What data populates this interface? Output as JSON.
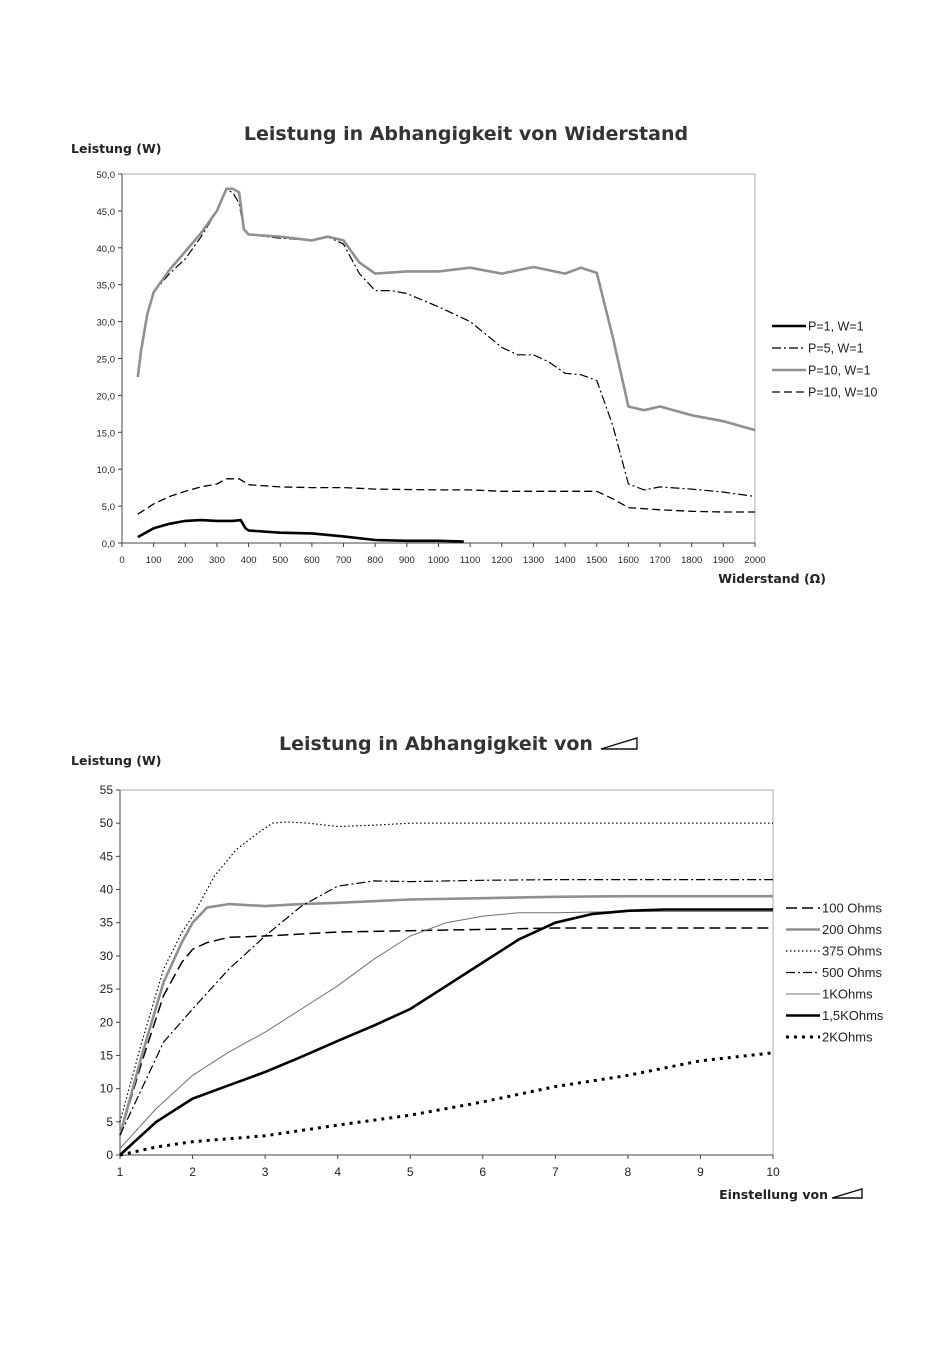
{
  "chart_data": [
    {
      "type": "line",
      "title": "Leistung in Abhangigkeit von Widerstand",
      "ylabel": "Leistung (W)",
      "xlabel": "Widerstand (Ω)",
      "xlim": [
        0,
        2000
      ],
      "ylim": [
        0,
        50
      ],
      "xticks": [
        "0",
        "100",
        "200",
        "300",
        "400",
        "500",
        "600",
        "700",
        "800",
        "900",
        "1000",
        "1100",
        "1200",
        "1300",
        "1400",
        "1500",
        "1600",
        "1700",
        "1800",
        "1900",
        "2000"
      ],
      "yticks": [
        "0,0",
        "5,0",
        "10,0",
        "15,0",
        "20,0",
        "25,0",
        "30,0",
        "35,0",
        "40,0",
        "45,0",
        "50,0"
      ],
      "grid": false,
      "legend_position": "right",
      "series": [
        {
          "name": "P=1, W=1",
          "style": "solid-thick",
          "color": "#000000",
          "points": [
            [
              50,
              0.8
            ],
            [
              100,
              2.0
            ],
            [
              150,
              2.6
            ],
            [
              200,
              3.0
            ],
            [
              250,
              3.1
            ],
            [
              300,
              3.0
            ],
            [
              350,
              3.0
            ],
            [
              375,
              3.1
            ],
            [
              390,
              2.0
            ],
            [
              400,
              1.7
            ],
            [
              500,
              1.4
            ],
            [
              600,
              1.3
            ],
            [
              700,
              0.9
            ],
            [
              800,
              0.4
            ],
            [
              900,
              0.3
            ],
            [
              1000,
              0.3
            ],
            [
              1080,
              0.2
            ]
          ]
        },
        {
          "name": "P=5, W=1",
          "style": "dashdot",
          "color": "#000000",
          "points": [
            [
              50,
              22.5
            ],
            [
              60,
              26
            ],
            [
              80,
              31
            ],
            [
              100,
              34
            ],
            [
              150,
              36.5
            ],
            [
              200,
              38.5
            ],
            [
              250,
              41.5
            ],
            [
              300,
              45
            ],
            [
              330,
              47.8
            ],
            [
              350,
              47.5
            ],
            [
              370,
              46
            ],
            [
              385,
              42.5
            ],
            [
              400,
              41.8
            ],
            [
              500,
              41.3
            ],
            [
              600,
              41.0
            ],
            [
              650,
              41.5
            ],
            [
              700,
              40.5
            ],
            [
              750,
              36.5
            ],
            [
              800,
              34.2
            ],
            [
              850,
              34.2
            ],
            [
              900,
              33.8
            ],
            [
              1000,
              32.0
            ],
            [
              1100,
              30.0
            ],
            [
              1200,
              26.5
            ],
            [
              1250,
              25.5
            ],
            [
              1300,
              25.5
            ],
            [
              1350,
              24.5
            ],
            [
              1400,
              23.0
            ],
            [
              1450,
              22.8
            ],
            [
              1500,
              22.0
            ],
            [
              1550,
              16.0
            ],
            [
              1600,
              8.0
            ],
            [
              1650,
              7.2
            ],
            [
              1700,
              7.6
            ],
            [
              1800,
              7.3
            ],
            [
              1900,
              6.9
            ],
            [
              2000,
              6.3
            ]
          ]
        },
        {
          "name": "P=10, W=1",
          "style": "solid-gray",
          "color": "#909090",
          "points": [
            [
              50,
              22.5
            ],
            [
              60,
              26
            ],
            [
              80,
              31
            ],
            [
              100,
              34
            ],
            [
              150,
              37
            ],
            [
              200,
              39.5
            ],
            [
              250,
              42
            ],
            [
              300,
              45
            ],
            [
              330,
              48.0
            ],
            [
              350,
              48.0
            ],
            [
              370,
              47.5
            ],
            [
              385,
              42.5
            ],
            [
              400,
              41.8
            ],
            [
              500,
              41.5
            ],
            [
              600,
              41.0
            ],
            [
              650,
              41.5
            ],
            [
              700,
              41.0
            ],
            [
              750,
              38.0
            ],
            [
              800,
              36.5
            ],
            [
              900,
              36.8
            ],
            [
              1000,
              36.8
            ],
            [
              1100,
              37.3
            ],
            [
              1200,
              36.5
            ],
            [
              1300,
              37.4
            ],
            [
              1400,
              36.5
            ],
            [
              1450,
              37.3
            ],
            [
              1500,
              36.6
            ],
            [
              1550,
              28.0
            ],
            [
              1600,
              18.5
            ],
            [
              1650,
              18.0
            ],
            [
              1700,
              18.5
            ],
            [
              1800,
              17.3
            ],
            [
              1900,
              16.5
            ],
            [
              2000,
              15.3
            ]
          ]
        },
        {
          "name": "P=10, W=10",
          "style": "dashed",
          "color": "#000000",
          "points": [
            [
              50,
              3.9
            ],
            [
              100,
              5.3
            ],
            [
              150,
              6.3
            ],
            [
              200,
              7.0
            ],
            [
              250,
              7.6
            ],
            [
              300,
              8.0
            ],
            [
              330,
              8.7
            ],
            [
              370,
              8.7
            ],
            [
              400,
              7.9
            ],
            [
              500,
              7.6
            ],
            [
              600,
              7.5
            ],
            [
              700,
              7.5
            ],
            [
              800,
              7.3
            ],
            [
              1000,
              7.2
            ],
            [
              1100,
              7.2
            ],
            [
              1200,
              7.0
            ],
            [
              1300,
              7.0
            ],
            [
              1400,
              7.0
            ],
            [
              1500,
              7.0
            ],
            [
              1550,
              6.0
            ],
            [
              1600,
              4.8
            ],
            [
              1700,
              4.5
            ],
            [
              1800,
              4.3
            ],
            [
              1900,
              4.2
            ],
            [
              2000,
              4.2
            ]
          ]
        }
      ]
    },
    {
      "type": "line",
      "title": "Leistung in Abhangigkeit von",
      "title_icon": "wedge-icon",
      "ylabel": "Leistung (W)",
      "xlabel": "Einstellung von",
      "xlabel_icon": "wedge-icon",
      "xlim": [
        1,
        10
      ],
      "ylim": [
        0,
        55
      ],
      "xticks": [
        "1",
        "2",
        "3",
        "4",
        "5",
        "6",
        "7",
        "8",
        "9",
        "10"
      ],
      "yticks": [
        "0",
        "5",
        "10",
        "15",
        "20",
        "25",
        "30",
        "35",
        "40",
        "45",
        "50",
        "55"
      ],
      "grid": false,
      "legend_position": "right",
      "series": [
        {
          "name": "100 Ohms",
          "style": "longdash",
          "color": "#000000",
          "points": [
            [
              1,
              3
            ],
            [
              1.3,
              14
            ],
            [
              1.6,
              24
            ],
            [
              1.85,
              29
            ],
            [
              2.0,
              31
            ],
            [
              2.2,
              32
            ],
            [
              2.5,
              32.8
            ],
            [
              3,
              33.0
            ],
            [
              3.5,
              33.3
            ],
            [
              4,
              33.6
            ],
            [
              5,
              33.8
            ],
            [
              6,
              34.0
            ],
            [
              7,
              34.2
            ],
            [
              8,
              34.2
            ],
            [
              9,
              34.2
            ],
            [
              10,
              34.2
            ]
          ]
        },
        {
          "name": "200 Ohms",
          "style": "solid-gray",
          "color": "#909090",
          "points": [
            [
              1,
              3
            ],
            [
              1.3,
              15
            ],
            [
              1.6,
              26
            ],
            [
              1.85,
              32
            ],
            [
              2.0,
              35
            ],
            [
              2.2,
              37.3
            ],
            [
              2.5,
              37.8
            ],
            [
              3,
              37.5
            ],
            [
              3.5,
              37.8
            ],
            [
              4,
              38.0
            ],
            [
              5,
              38.5
            ],
            [
              6,
              38.7
            ],
            [
              7,
              38.9
            ],
            [
              8,
              39.0
            ],
            [
              9,
              39.0
            ],
            [
              10,
              39.0
            ]
          ]
        },
        {
          "name": "375 Ohms",
          "style": "dotted",
          "color": "#000000",
          "points": [
            [
              1,
              5
            ],
            [
              1.3,
              17
            ],
            [
              1.6,
              28
            ],
            [
              1.85,
              33.5
            ],
            [
              2.0,
              36
            ],
            [
              2.3,
              42
            ],
            [
              2.6,
              46
            ],
            [
              2.9,
              48.5
            ],
            [
              3.1,
              50
            ],
            [
              3.3,
              50.2
            ],
            [
              3.6,
              50.0
            ],
            [
              4.0,
              49.5
            ],
            [
              4.5,
              49.7
            ],
            [
              5,
              50.0
            ],
            [
              6,
              50.0
            ],
            [
              7,
              50.0
            ],
            [
              8,
              50.0
            ],
            [
              9,
              50.0
            ],
            [
              10,
              50.0
            ]
          ]
        },
        {
          "name": "500 Ohms",
          "style": "dashdot",
          "color": "#000000",
          "points": [
            [
              1,
              3
            ],
            [
              1.3,
              10
            ],
            [
              1.6,
              17
            ],
            [
              2.0,
              22
            ],
            [
              2.5,
              28
            ],
            [
              3.0,
              33
            ],
            [
              3.5,
              37.5
            ],
            [
              4.0,
              40.5
            ],
            [
              4.5,
              41.3
            ],
            [
              5,
              41.2
            ],
            [
              6,
              41.4
            ],
            [
              7,
              41.5
            ],
            [
              8,
              41.5
            ],
            [
              9,
              41.5
            ],
            [
              10,
              41.5
            ]
          ]
        },
        {
          "name": "1KOhms",
          "style": "solid-thin",
          "color": "#707070",
          "points": [
            [
              1,
              1
            ],
            [
              1.5,
              7
            ],
            [
              2.0,
              12
            ],
            [
              2.5,
              15.5
            ],
            [
              3.0,
              18.5
            ],
            [
              3.5,
              22
            ],
            [
              4.0,
              25.5
            ],
            [
              4.5,
              29.5
            ],
            [
              5.0,
              33
            ],
            [
              5.5,
              35
            ],
            [
              6.0,
              36
            ],
            [
              6.5,
              36.5
            ],
            [
              7,
              36.5
            ],
            [
              8,
              36.7
            ],
            [
              9,
              36.7
            ],
            [
              10,
              36.7
            ]
          ]
        },
        {
          "name": "1,5KOhms",
          "style": "solid-thick",
          "color": "#000000",
          "points": [
            [
              1,
              0
            ],
            [
              1.5,
              5
            ],
            [
              2.0,
              8.5
            ],
            [
              2.5,
              10.5
            ],
            [
              3.0,
              12.5
            ],
            [
              3.5,
              14.8
            ],
            [
              4.0,
              17.2
            ],
            [
              4.5,
              19.5
            ],
            [
              5.0,
              22
            ],
            [
              5.5,
              25.5
            ],
            [
              6.0,
              29
            ],
            [
              6.5,
              32.5
            ],
            [
              7.0,
              35
            ],
            [
              7.5,
              36.3
            ],
            [
              8.0,
              36.8
            ],
            [
              8.5,
              37.0
            ],
            [
              9,
              37.0
            ],
            [
              10,
              37.0
            ]
          ]
        },
        {
          "name": "2KOhms",
          "style": "dotted-thick",
          "color": "#000000",
          "points": [
            [
              1,
              0
            ],
            [
              1.5,
              1.2
            ],
            [
              2.0,
              2.0
            ],
            [
              3.0,
              2.9
            ],
            [
              4.0,
              4.5
            ],
            [
              5.0,
              6.0
            ],
            [
              6.0,
              8.0
            ],
            [
              7.0,
              10.3
            ],
            [
              8.0,
              12.0
            ],
            [
              9.0,
              14.2
            ],
            [
              10,
              15.4
            ]
          ]
        }
      ]
    }
  ]
}
